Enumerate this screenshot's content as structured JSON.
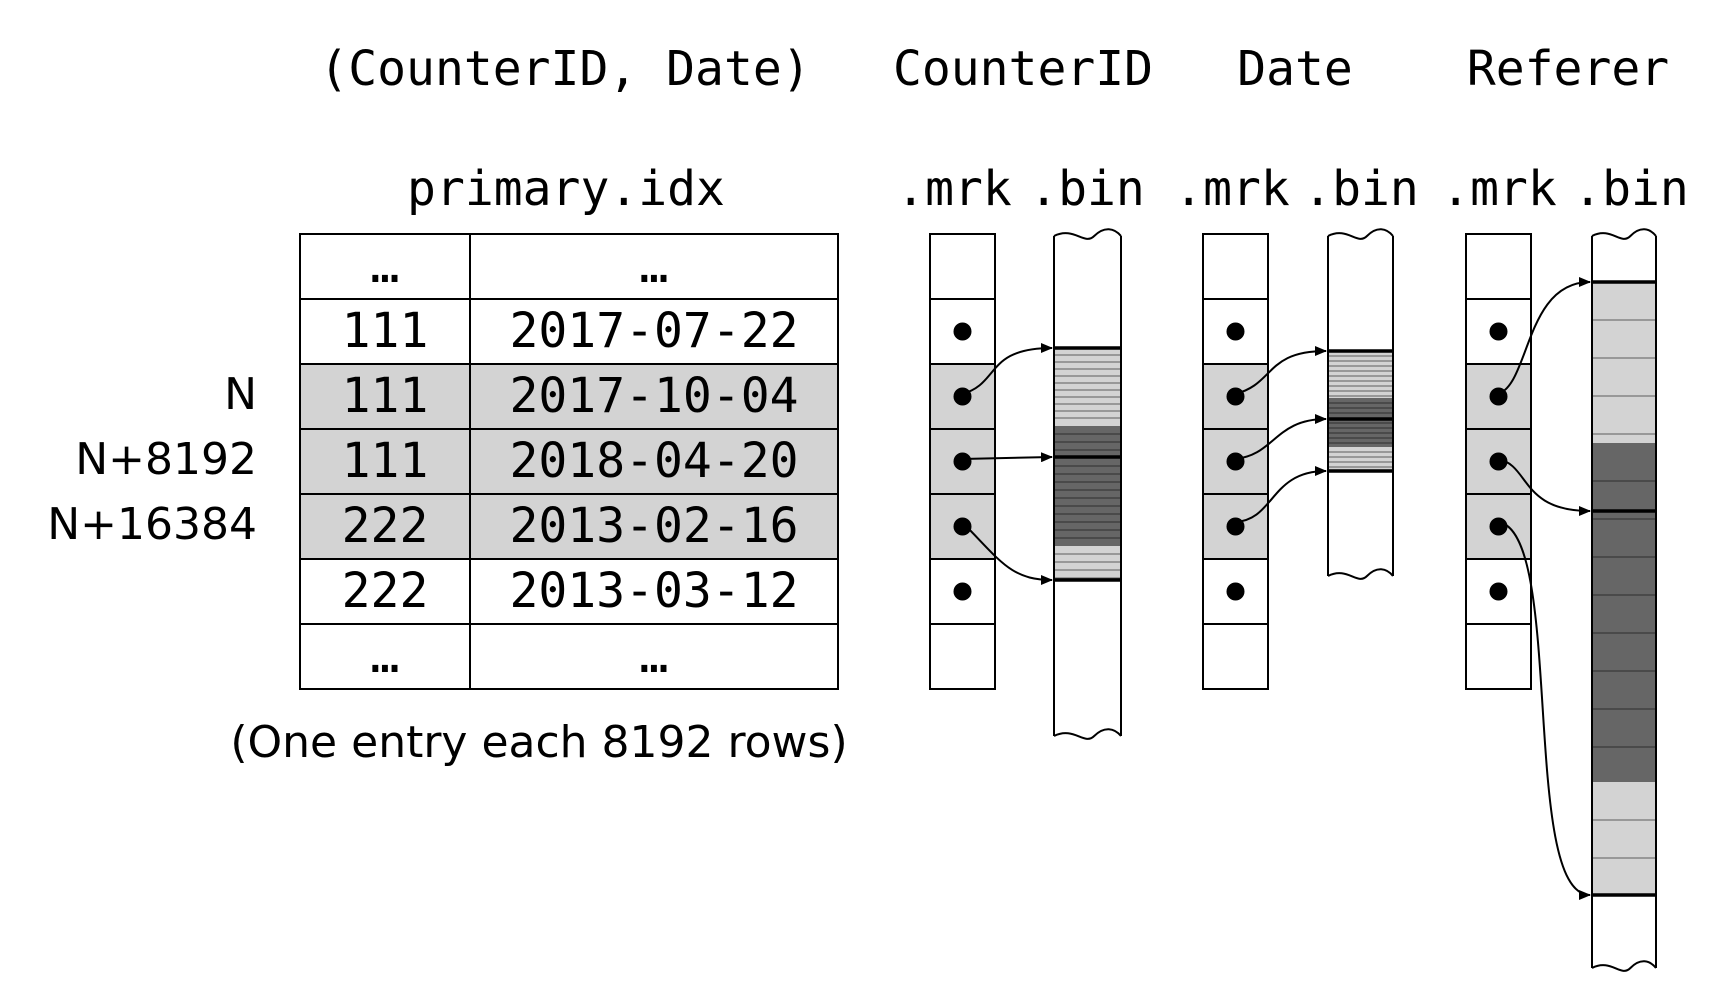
{
  "headers": {
    "primary_key": "(CounterID, Date)",
    "col1": "CounterID",
    "col2": "Date",
    "col3": "Referer"
  },
  "file_labels": {
    "primary": "primary.idx",
    "mrk": ".mrk",
    "bin": ".bin"
  },
  "row_labels": [
    "N",
    "N+8192",
    "N+16384"
  ],
  "index_rows": [
    {
      "counter": "…",
      "date": "…",
      "highlighted": false
    },
    {
      "counter": "111",
      "date": "2017-07-22",
      "highlighted": false
    },
    {
      "counter": "111",
      "date": "2017-10-04",
      "highlighted": true
    },
    {
      "counter": "111",
      "date": "2018-04-20",
      "highlighted": true
    },
    {
      "counter": "222",
      "date": "2013-02-16",
      "highlighted": true
    },
    {
      "counter": "222",
      "date": "2013-03-12",
      "highlighted": false
    },
    {
      "counter": "…",
      "date": "…",
      "highlighted": false
    }
  ],
  "caption": "(One entry each 8192 rows)",
  "colors": {
    "stroke": "#000000",
    "highlight": "#d3d3d3",
    "dark_block": "#666666",
    "light_block": "#d3d3d3",
    "background": "#ffffff"
  }
}
